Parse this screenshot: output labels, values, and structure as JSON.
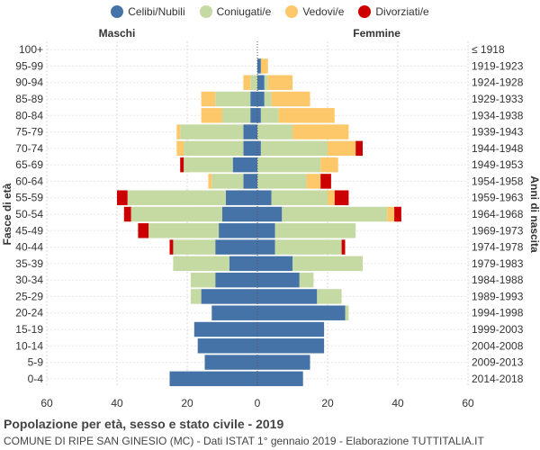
{
  "chart_data": {
    "type": "bar",
    "orientation": "horizontal-population-pyramid",
    "title": "Popolazione per età, sesso e stato civile - 2019",
    "subtitle": "COMUNE DI RIPE SAN GINESIO (MC) - Dati ISTAT 1° gennaio 2019 - Elaborazione TUTTITALIA.IT",
    "left_header": "Maschi",
    "right_header": "Femmine",
    "ylabel_left": "Fasce di età",
    "ylabel_right": "Anni di nascita",
    "xlim": [
      -60,
      60
    ],
    "xticks": [
      -60,
      -40,
      -20,
      0,
      20,
      40,
      60
    ],
    "xtick_labels": [
      "60",
      "40",
      "20",
      "0",
      "20",
      "40",
      "60"
    ],
    "age_groups": [
      "100+",
      "95-99",
      "90-94",
      "85-89",
      "80-84",
      "75-79",
      "70-74",
      "65-69",
      "60-64",
      "55-59",
      "50-54",
      "45-49",
      "40-44",
      "35-39",
      "30-34",
      "25-29",
      "20-24",
      "15-19",
      "10-14",
      "5-9",
      "0-4"
    ],
    "birth_years": [
      "≤ 1918",
      "1919-1923",
      "1924-1928",
      "1929-1933",
      "1934-1938",
      "1939-1943",
      "1944-1948",
      "1949-1953",
      "1954-1958",
      "1959-1963",
      "1964-1968",
      "1969-1973",
      "1974-1978",
      "1979-1983",
      "1984-1988",
      "1989-1993",
      "1994-1998",
      "1999-2003",
      "2004-2008",
      "2009-2013",
      "2014-2018"
    ],
    "legend": [
      {
        "name": "Celibi/Nubili",
        "color": "#4573a7"
      },
      {
        "name": "Coniugati/e",
        "color": "#c5d9a3"
      },
      {
        "name": "Vedovi/e",
        "color": "#fdc86a"
      },
      {
        "name": "Divorziati/e",
        "color": "#cc0000"
      }
    ],
    "males": {
      "Celibi/Nubili": [
        0,
        0,
        0,
        2,
        2,
        4,
        4,
        7,
        4,
        9,
        10,
        11,
        12,
        8,
        12,
        16,
        13,
        18,
        17,
        15,
        25
      ],
      "Coniugati/e": [
        0,
        0,
        2,
        10,
        8,
        18,
        17,
        14,
        9,
        28,
        26,
        20,
        12,
        16,
        7,
        3,
        0,
        0,
        0,
        0,
        0
      ],
      "Vedovi/e": [
        0,
        0,
        2,
        4,
        6,
        1,
        2,
        0,
        1,
        0,
        0,
        0,
        0,
        0,
        0,
        0,
        0,
        0,
        0,
        0,
        0
      ],
      "Divorziati/e": [
        0,
        0,
        0,
        0,
        0,
        0,
        0,
        1,
        0,
        3,
        2,
        3,
        1,
        0,
        0,
        0,
        0,
        0,
        0,
        0,
        0
      ]
    },
    "females": {
      "Celibi/Nubili": [
        0,
        1,
        2,
        2,
        1,
        0,
        1,
        0,
        0,
        4,
        7,
        5,
        5,
        10,
        12,
        17,
        25,
        19,
        19,
        15,
        13
      ],
      "Coniugati/e": [
        0,
        0,
        1,
        2,
        5,
        10,
        19,
        18,
        14,
        16,
        30,
        23,
        19,
        20,
        4,
        7,
        1,
        0,
        0,
        0,
        0
      ],
      "Vedovi/e": [
        0,
        2,
        7,
        11,
        16,
        16,
        8,
        5,
        4,
        2,
        2,
        0,
        0,
        0,
        0,
        0,
        0,
        0,
        0,
        0,
        0
      ],
      "Divorziati/e": [
        0,
        0,
        0,
        0,
        0,
        0,
        2,
        0,
        3,
        4,
        2,
        0,
        1,
        0,
        0,
        0,
        0,
        0,
        0,
        0,
        0
      ]
    }
  }
}
